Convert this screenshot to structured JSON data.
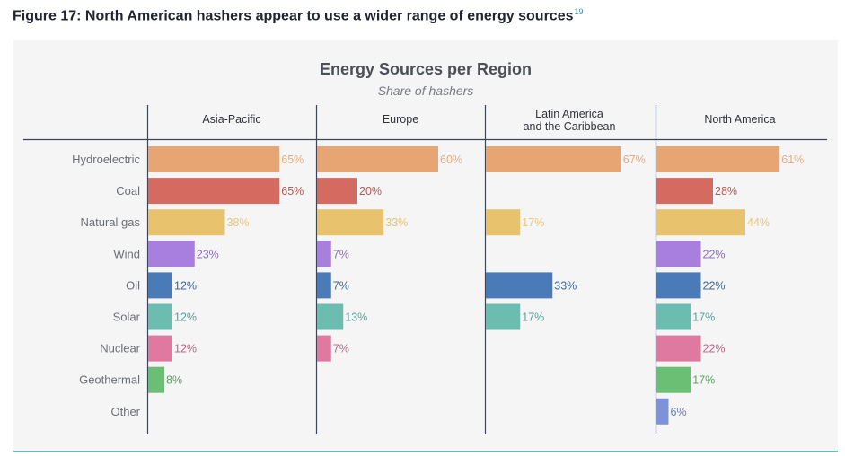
{
  "figure": {
    "title": "Figure 17: North American hashers appear to use a wider range of energy sources",
    "footnote_ref": "19"
  },
  "colors": {
    "Hydroelectric": "#e8a574",
    "Coal": "#d46a60",
    "Natural gas": "#e9c26e",
    "Wind": "#a87fdf",
    "Oil": "#4a7ab8",
    "Solar": "#6cbcb0",
    "Nuclear": "#e079a0",
    "Geothermal": "#6abf74",
    "Other": "#7e92d8"
  },
  "chart_data": {
    "type": "bar",
    "orientation": "horizontal",
    "layout": "small-multiples",
    "title": "Energy Sources per Region",
    "subtitle": "Share of hashers",
    "unit": "%",
    "xlim": [
      0,
      100
    ],
    "grid": false,
    "categories": [
      "Hydroelectric",
      "Coal",
      "Natural gas",
      "Wind",
      "Oil",
      "Solar",
      "Nuclear",
      "Geothermal",
      "Other"
    ],
    "panels": [
      {
        "name": "Asia-Pacific",
        "values": [
          65,
          65,
          38,
          23,
          12,
          12,
          12,
          8,
          null
        ]
      },
      {
        "name": "Europe",
        "values": [
          60,
          20,
          33,
          7,
          7,
          13,
          7,
          null,
          null
        ]
      },
      {
        "name": "Latin America and the Caribbean",
        "name_lines": [
          "Latin America",
          "and the Caribbean"
        ],
        "values": [
          67,
          null,
          17,
          null,
          33,
          17,
          null,
          null,
          null
        ]
      },
      {
        "name": "North America",
        "values": [
          61,
          28,
          44,
          22,
          22,
          17,
          22,
          17,
          6
        ]
      }
    ]
  }
}
